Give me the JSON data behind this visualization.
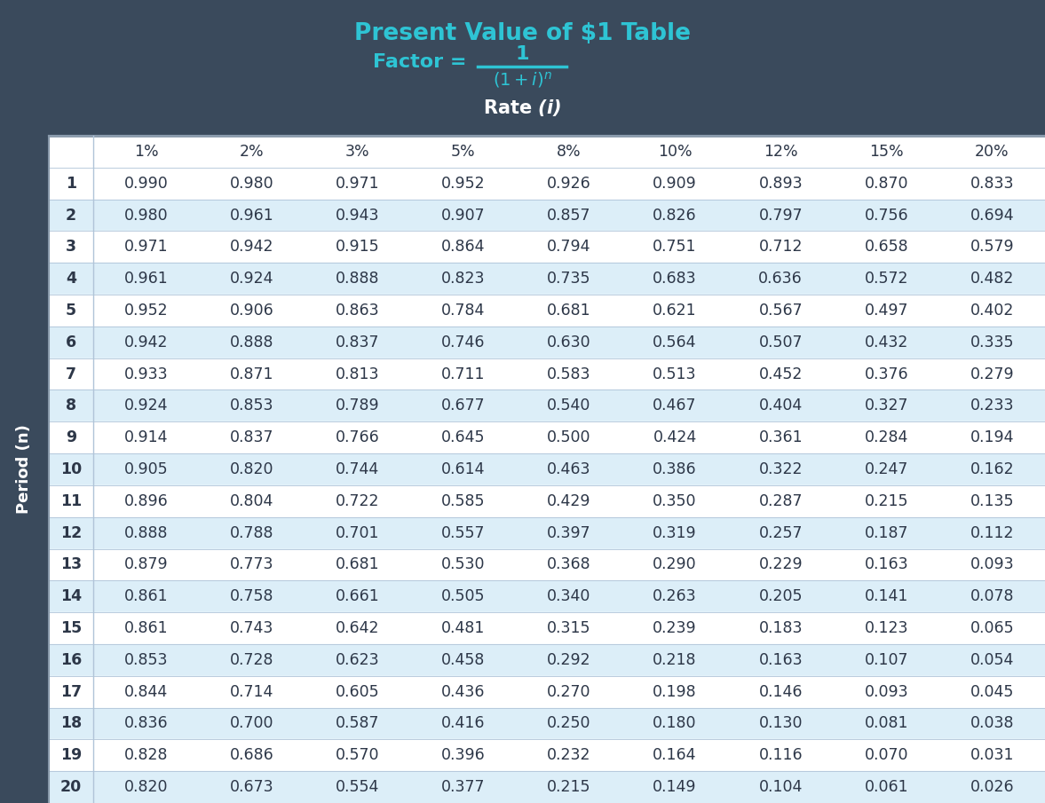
{
  "title": "Present Value of $1 Table",
  "period_label": "Period (n)",
  "bg_header": "#3a4a5c",
  "bg_table_odd": "#ffffff",
  "bg_table_even": "#dceef8",
  "text_header_cyan": "#2ec4d4",
  "text_table_dark": "#2d3748",
  "text_white": "#ffffff",
  "columns": [
    "1%",
    "2%",
    "3%",
    "5%",
    "8%",
    "10%",
    "12%",
    "15%",
    "20%"
  ],
  "rows": [
    [
      1,
      0.99,
      0.98,
      0.971,
      0.952,
      0.926,
      0.909,
      0.893,
      0.87,
      0.833
    ],
    [
      2,
      0.98,
      0.961,
      0.943,
      0.907,
      0.857,
      0.826,
      0.797,
      0.756,
      0.694
    ],
    [
      3,
      0.971,
      0.942,
      0.915,
      0.864,
      0.794,
      0.751,
      0.712,
      0.658,
      0.579
    ],
    [
      4,
      0.961,
      0.924,
      0.888,
      0.823,
      0.735,
      0.683,
      0.636,
      0.572,
      0.482
    ],
    [
      5,
      0.952,
      0.906,
      0.863,
      0.784,
      0.681,
      0.621,
      0.567,
      0.497,
      0.402
    ],
    [
      6,
      0.942,
      0.888,
      0.837,
      0.746,
      0.63,
      0.564,
      0.507,
      0.432,
      0.335
    ],
    [
      7,
      0.933,
      0.871,
      0.813,
      0.711,
      0.583,
      0.513,
      0.452,
      0.376,
      0.279
    ],
    [
      8,
      0.924,
      0.853,
      0.789,
      0.677,
      0.54,
      0.467,
      0.404,
      0.327,
      0.233
    ],
    [
      9,
      0.914,
      0.837,
      0.766,
      0.645,
      0.5,
      0.424,
      0.361,
      0.284,
      0.194
    ],
    [
      10,
      0.905,
      0.82,
      0.744,
      0.614,
      0.463,
      0.386,
      0.322,
      0.247,
      0.162
    ],
    [
      11,
      0.896,
      0.804,
      0.722,
      0.585,
      0.429,
      0.35,
      0.287,
      0.215,
      0.135
    ],
    [
      12,
      0.888,
      0.788,
      0.701,
      0.557,
      0.397,
      0.319,
      0.257,
      0.187,
      0.112
    ],
    [
      13,
      0.879,
      0.773,
      0.681,
      0.53,
      0.368,
      0.29,
      0.229,
      0.163,
      0.093
    ],
    [
      14,
      0.861,
      0.758,
      0.661,
      0.505,
      0.34,
      0.263,
      0.205,
      0.141,
      0.078
    ],
    [
      15,
      0.861,
      0.743,
      0.642,
      0.481,
      0.315,
      0.239,
      0.183,
      0.123,
      0.065
    ],
    [
      16,
      0.853,
      0.728,
      0.623,
      0.458,
      0.292,
      0.218,
      0.163,
      0.107,
      0.054
    ],
    [
      17,
      0.844,
      0.714,
      0.605,
      0.436,
      0.27,
      0.198,
      0.146,
      0.093,
      0.045
    ],
    [
      18,
      0.836,
      0.7,
      0.587,
      0.416,
      0.25,
      0.18,
      0.13,
      0.081,
      0.038
    ],
    [
      19,
      0.828,
      0.686,
      0.57,
      0.396,
      0.232,
      0.164,
      0.116,
      0.07,
      0.031
    ],
    [
      20,
      0.82,
      0.673,
      0.554,
      0.377,
      0.215,
      0.149,
      0.104,
      0.061,
      0.026
    ]
  ]
}
